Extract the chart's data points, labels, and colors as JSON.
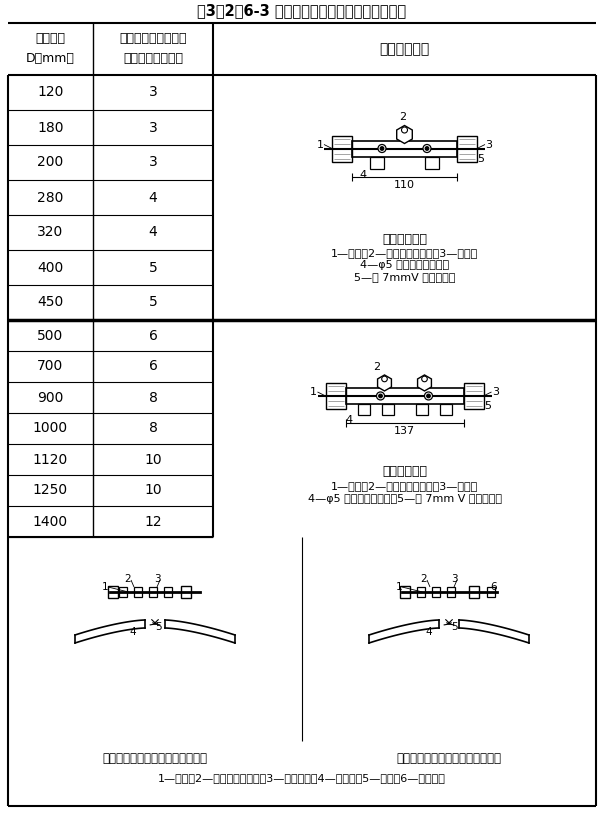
{
  "title": "表3．2．6-3 内胀芯管螺钉数量及制作安装形式",
  "col1_header_line1": "风管直径",
  "col1_header_line2": "D（mm）",
  "col2_header_line1": "芯管每端口自攻螺钉",
  "col2_header_line2": "或铆钉数量（个）",
  "col3_header": "内胀芯管形式",
  "section1_rows": [
    [
      "120",
      "3"
    ],
    [
      "180",
      "3"
    ],
    [
      "200",
      "3"
    ],
    [
      "280",
      "4"
    ],
    [
      "320",
      "4"
    ],
    [
      "400",
      "5"
    ],
    [
      "450",
      "5"
    ]
  ],
  "section2_rows": [
    [
      "500",
      "6"
    ],
    [
      "700",
      "6"
    ],
    [
      "900",
      "8"
    ],
    [
      "1000",
      "8"
    ],
    [
      "1120",
      "10"
    ],
    [
      "1250",
      "10"
    ],
    [
      "1400",
      "12"
    ]
  ],
  "diagram1_title": "单箍内胀芯管",
  "diagram1_line1": "1—风管；2—固定耳（焊接）；3—铆钉；",
  "diagram1_line2": "4—φ5 实芯橡胶密封圈；",
  "diagram1_line3": "5—宽 7mmV 形密封槽口",
  "diagram1_dim": "110",
  "diagram2_title": "双箍内胀芯管",
  "diagram2_line1": "1—风管；2—固定耳（焊接）；3—铆钉；",
  "diagram2_line2": "4—φ5 实芯橡胶密封圈；5—宽 7mm V 形密封槽口",
  "diagram2_dim": "137",
  "bottom_left_caption": "内胀芯管安装前开口处的搭接状态",
  "bottom_right_caption": "内胀芯管安装后开口处的搭接状态",
  "bottom_labels": "1—螺杆；2—固定耳（焊接）；3—顶推螺母；4—级缝焊；5—衬板；6—自攻螺丝",
  "bg_color": "#ffffff",
  "line_color": "#000000",
  "text_color": "#000000"
}
